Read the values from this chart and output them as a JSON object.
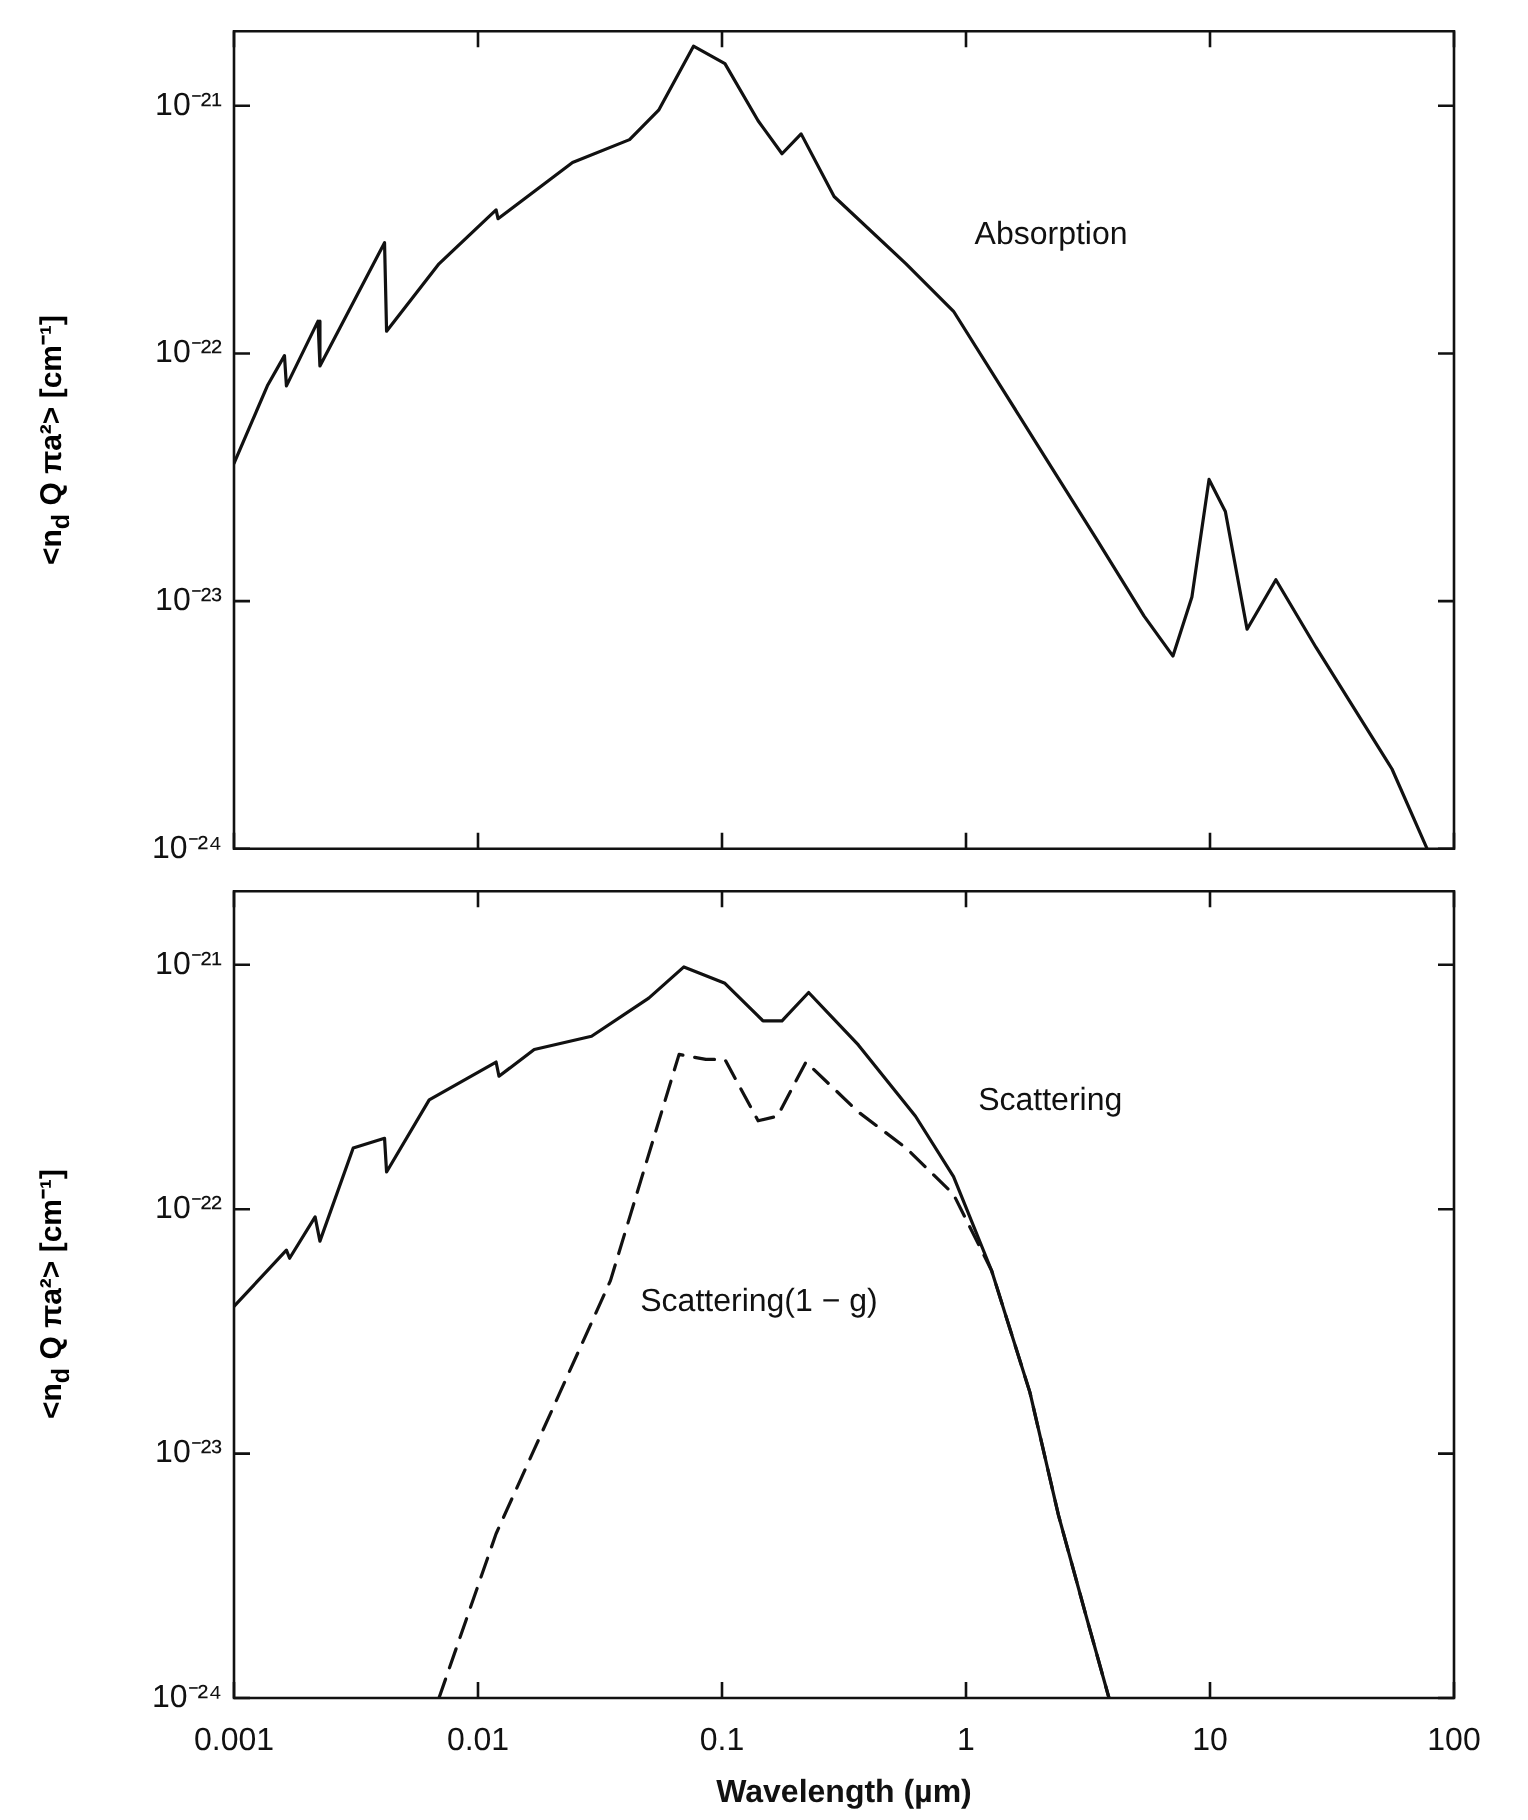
{
  "chart_data": [
    {
      "type": "line",
      "ylabel": "<n$_{d}$ Q πa²> [cm⁻¹]",
      "log": "xy",
      "tick_labels": "y",
      "xlim": [
        0.001,
        100
      ],
      "xticks": [
        0.001,
        0.01,
        0.1,
        1,
        10,
        100
      ],
      "ylim": [
        1e-24,
        2e-21
      ],
      "yticks": [
        {
          "value": 1e-24,
          "label": "10⁻²⁴"
        },
        {
          "value": 1e-23,
          "label": "10⁻²³"
        },
        {
          "value": 1e-22,
          "label": "10⁻²²"
        },
        {
          "value": 1e-21,
          "label": "10⁻²¹"
        }
      ],
      "series": [
        {
          "name": "Absorption",
          "color": "#111111",
          "x": [
            0.001,
            0.00137,
            0.00161,
            0.00164,
            0.00221,
            0.00225,
            0.00414,
            0.00422,
            0.00692,
            0.01186,
            0.01208,
            0.0244,
            0.0418,
            0.055,
            0.0764,
            0.1028,
            0.1406,
            0.1762,
            0.211,
            0.288,
            0.568,
            0.889,
            1.396,
            2.188,
            3.428,
            5.37,
            7.05,
            8.43,
            9.91,
            11.56,
            14.19,
            18.62,
            27.2,
            55.7,
            77.6
          ],
          "values": [
            3.6e-23,
            7.4e-23,
            9.8e-23,
            7.4e-23,
            1.35e-22,
            8.9e-23,
            2.8e-22,
            1.23e-22,
            2.3e-22,
            3.8e-22,
            3.5e-22,
            5.9e-22,
            7.3e-22,
            9.6e-22,
            1.74e-21,
            1.48e-21,
            8.7e-22,
            6.4e-22,
            7.7e-22,
            4.3e-22,
            2.3e-22,
            1.48e-22,
            7.3e-23,
            3.6e-23,
            1.78e-23,
            8.7e-24,
            6e-24,
            1.04e-23,
            3.1e-23,
            2.3e-23,
            7.7e-24,
            1.22e-23,
            6.5e-24,
            2.1e-24,
            1e-24
          ]
        }
      ]
    },
    {
      "type": "line",
      "xlabel": "Wavelength (µm)",
      "ylabel": "<n$_{d}$ Q πa²> [cm⁻¹]",
      "log": "xy",
      "xlim": [
        0.001,
        100
      ],
      "xticks": [
        0.001,
        0.01,
        0.1,
        1,
        10,
        100
      ],
      "ylim": [
        1e-24,
        2e-21
      ],
      "yticks": [
        {
          "value": 1e-24,
          "label": "10⁻²⁴"
        },
        {
          "value": 1e-23,
          "label": "10⁻²³"
        },
        {
          "value": 1e-22,
          "label": "10⁻²²"
        },
        {
          "value": 1e-21,
          "label": "10⁻²¹"
        }
      ],
      "series": [
        {
          "name": "Scattering",
          "color": "#111111",
          "x": [
            0.001,
            0.00164,
            0.00169,
            0.00215,
            0.00225,
            0.00308,
            0.00414,
            0.00422,
            0.00631,
            0.01186,
            0.01219,
            0.017,
            0.0292,
            0.0501,
            0.0698,
            0.1028,
            0.1472,
            0.1762,
            0.2265,
            0.362,
            0.621,
            0.889,
            1.274,
            1.828,
            2.393,
            3.133,
            3.855
          ],
          "values": [
            4e-23,
            6.8e-23,
            6.3e-23,
            9.3e-23,
            7.4e-23,
            1.78e-22,
            1.95e-22,
            1.42e-22,
            2.8e-22,
            4e-22,
            3.5e-22,
            4.5e-22,
            5.1e-22,
            7.3e-22,
            9.8e-22,
            8.4e-22,
            5.9e-22,
            5.9e-22,
            7.7e-22,
            4.7e-22,
            2.4e-22,
            1.36e-22,
            5.6e-23,
            1.78e-23,
            5.6e-24,
            2.1e-24,
            1e-24
          ]
        },
        {
          "name": "Scattering(1 − g)",
          "color": "#111111",
          "line_style": "dashed",
          "x": [
            0.00692,
            0.01186,
            0.017,
            0.0349,
            0.0667,
            0.0859,
            0.1028,
            0.1406,
            0.1687,
            0.2208,
            0.362,
            0.568,
            0.889,
            1.274,
            1.828,
            2.393,
            3.133,
            3.855
          ],
          "values": [
            1e-24,
            4.7e-24,
            1.04e-23,
            5.1e-23,
            4.3e-22,
            4.1e-22,
            4.1e-22,
            2.3e-22,
            2.4e-22,
            4e-22,
            2.5e-22,
            1.78e-22,
            1.15e-22,
            5.6e-23,
            1.78e-23,
            5.6e-24,
            2.1e-24,
            1e-24
          ]
        }
      ]
    }
  ]
}
